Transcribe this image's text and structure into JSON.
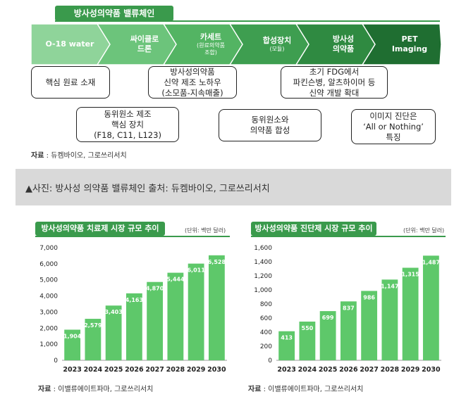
{
  "chain": {
    "title": "방사성의약품 밸류체인",
    "steps": [
      {
        "label": "O-18 water",
        "sub": "",
        "color": "#8fd49a"
      },
      {
        "label": "싸이클로\n드론",
        "sub": "",
        "color": "#6cc47b"
      },
      {
        "label": "카세트",
        "sub": "(원료의약품\n조합)",
        "color": "#53b463"
      },
      {
        "label": "합성장치",
        "sub": "(모듈)",
        "color": "#3e9e50"
      },
      {
        "label": "방사성\n의약품",
        "sub": "",
        "color": "#2f8a41"
      },
      {
        "label": "PET\nImaging",
        "sub": "",
        "color": "#1f6e31"
      }
    ],
    "boxes": [
      "핵심 원료 소재",
      "방사성의약품\n신약 제조 노하우\n(소모품-지속매출)",
      "초기 FDG에서\n파킨슨병, 알츠하이머 등\n신약 개발 확대",
      "동위원소 제조\n핵심 장치\n(F18, C11, L123)",
      "동위원소와\n의약품 합성",
      "이미지 진단은\n‘All or Nothing’\n특징"
    ],
    "source_label": "자료",
    "source_text": " : 듀켐바이오, 그로쓰리서치"
  },
  "caption": "▲사진: 방사성 의약품 밸류체인 출처: 듀켐바이오, 그로쓰리서치",
  "charts": {
    "left": {
      "source_label": "자료",
      "source_text": " : 이밸류에이트파마, 그로쓰리서치"
    },
    "right": {
      "source_label": "자료",
      "source_text": " : 이밸류에이트파마, 그로쓰리서치"
    }
  },
  "chart_data": [
    {
      "type": "bar",
      "title": "방사성의약품 치료제 시장 규모 추이",
      "unit": "(단위: 백만 달러)",
      "categories": [
        "2023",
        "2024",
        "2025",
        "2026",
        "2027",
        "2028",
        "2029",
        "2030"
      ],
      "values": [
        1904,
        2579,
        3403,
        4163,
        4870,
        5444,
        6011,
        6528
      ],
      "labels": [
        "1,904",
        "2,579",
        "3,403",
        "4,163",
        "4,870",
        "5,444",
        "6,011",
        "6,528"
      ],
      "yticks": [
        "0",
        "1,000",
        "2,000",
        "3,000",
        "4,000",
        "5,000",
        "6,000",
        "7,000"
      ],
      "ylim": [
        0,
        7000
      ],
      "color": "#5ec86a"
    },
    {
      "type": "bar",
      "title": "방사성의약품 진단제 시장 규모 추이",
      "unit": "(단위: 백만 달러)",
      "categories": [
        "2023",
        "2024",
        "2025",
        "2026",
        "2027",
        "2028",
        "2029",
        "2030"
      ],
      "values": [
        413,
        550,
        699,
        837,
        986,
        1147,
        1315,
        1487
      ],
      "labels": [
        "413",
        "550",
        "699",
        "837",
        "986",
        "1,147",
        "1,315",
        "1,487"
      ],
      "yticks": [
        "0",
        "200",
        "400",
        "600",
        "800",
        "1,000",
        "1,200",
        "1,400",
        "1,600"
      ],
      "ylim": [
        0,
        1600
      ],
      "color": "#5ec86a"
    }
  ]
}
